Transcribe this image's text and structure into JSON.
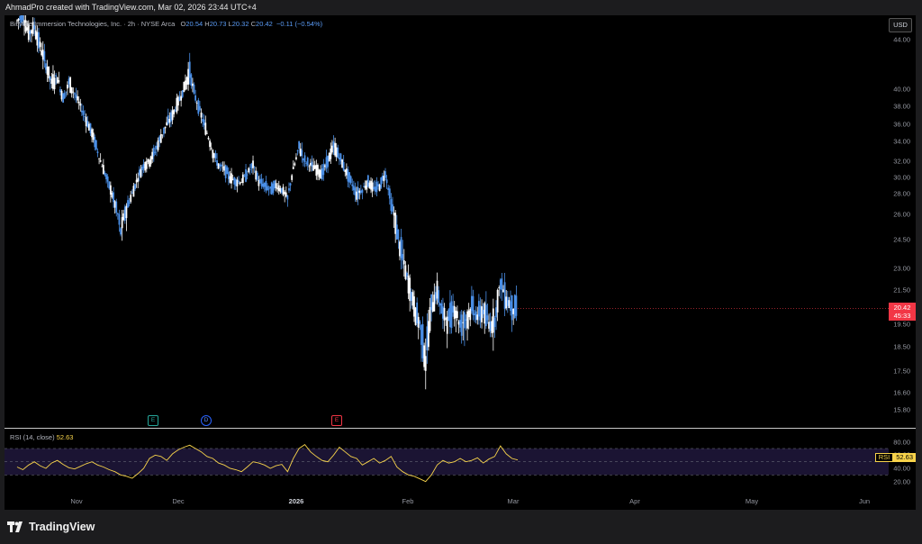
{
  "header": {
    "caption": "AhmadPro created with TradingView.com, Mar 02, 2026 23:44 UTC+4"
  },
  "symbol": {
    "title": "BitMine Immersion Technologies, Inc. · 2h · NYSE Arca",
    "o_label": "O",
    "o_value": "20.54",
    "h_label": "H",
    "h_value": "20.73",
    "l_label": "L",
    "l_value": "20.32",
    "c_label": "C",
    "c_value": "20.42",
    "change": "−0.11 (−0.54%)"
  },
  "currency_button": "USD",
  "price_axis": [
    "44.00",
    "40.00",
    "38.00",
    "36.00",
    "34.00",
    "32.00",
    "30.00",
    "28.00",
    "26.00",
    "24.50",
    "23.00",
    "21.50",
    "19.50",
    "18.50",
    "17.50",
    "16.60",
    "15.80"
  ],
  "last_price": {
    "price": "20.42",
    "countdown": "45:33"
  },
  "rsi": {
    "label": "RSI (14, close)",
    "value": "52.63",
    "tag_label": "RSI",
    "axis": [
      "80.00",
      "60.00",
      "40.00",
      "20.00"
    ]
  },
  "time_axis": [
    {
      "label": "Nov",
      "bold": false
    },
    {
      "label": "Dec",
      "bold": false
    },
    {
      "label": "2026",
      "bold": true
    },
    {
      "label": "Feb",
      "bold": false
    },
    {
      "label": "Mar",
      "bold": false
    },
    {
      "label": "Apr",
      "bold": false
    },
    {
      "label": "May",
      "bold": false
    },
    {
      "label": "Jun",
      "bold": false
    }
  ],
  "events": [
    {
      "type": "earnings",
      "glyph": "E"
    },
    {
      "type": "dividend",
      "glyph": "D"
    },
    {
      "type": "earnings-red",
      "glyph": "E"
    }
  ],
  "footer": {
    "brand": "TradingView"
  },
  "colors": {
    "candle_up": "#ffffff",
    "candle_down": "#4a8fe7",
    "rsi_line": "#f7d34a",
    "last_price": "#f23645",
    "background": "#000000"
  },
  "chart_data": {
    "type": "candlestick",
    "title": "BitMine Immersion Technologies, Inc. · 2h · NYSE Arca",
    "xlabel": "",
    "ylabel": "",
    "ylim": [
      15.8,
      46
    ],
    "x_ticks": [
      "Nov",
      "Dec",
      "2026",
      "Feb",
      "Mar",
      "Apr",
      "May",
      "Jun"
    ],
    "y_ticks": [
      44.0,
      40.0,
      38.0,
      36.0,
      34.0,
      32.0,
      30.0,
      28.0,
      26.0,
      24.5,
      23.0,
      21.5,
      19.5,
      18.5,
      17.5,
      16.6,
      15.8
    ],
    "close_path": [
      45.5,
      46,
      44.5,
      45,
      43.5,
      42,
      40.5,
      41,
      39,
      40.5,
      39.5,
      38,
      36.5,
      35,
      33,
      31,
      29,
      27,
      25,
      26.5,
      28,
      30,
      31.5,
      32,
      33,
      34.5,
      36,
      37,
      38.5,
      40,
      41.5,
      39,
      37,
      35,
      33,
      31.5,
      31,
      30,
      29.5,
      29.5,
      30.5,
      31.5,
      29.5,
      29,
      28.5,
      29,
      28.5,
      27.5,
      31,
      33.5,
      32,
      31.5,
      31,
      30.5,
      32,
      33.5,
      32.5,
      31,
      29.5,
      28,
      28.5,
      29.5,
      28.5,
      29,
      30.5,
      27,
      25,
      23.5,
      22,
      20.5,
      19.5,
      18,
      20.5,
      21.5,
      20,
      19.8,
      20.5,
      19.5,
      19.8,
      20.5,
      20,
      20.3,
      19.5,
      19.8,
      22,
      21,
      20.5,
      20.42
    ],
    "last": 20.42,
    "rsi_ylim": [
      10,
      85
    ],
    "rsi_levels": [
      70,
      50,
      30
    ],
    "rsi_values": [
      42,
      38,
      45,
      50,
      44,
      40,
      48,
      52,
      46,
      41,
      39,
      43,
      47,
      50,
      45,
      42,
      38,
      35,
      30,
      28,
      25,
      32,
      40,
      55,
      60,
      58,
      52,
      62,
      68,
      72,
      75,
      70,
      65,
      58,
      55,
      48,
      45,
      40,
      38,
      35,
      42,
      50,
      48,
      45,
      40,
      44,
      46,
      35,
      55,
      70,
      76,
      65,
      58,
      52,
      50,
      60,
      72,
      65,
      58,
      55,
      45,
      50,
      55,
      48,
      52,
      58,
      42,
      35,
      30,
      28,
      24,
      20,
      30,
      45,
      52,
      48,
      50,
      55,
      50,
      52,
      56,
      48,
      54,
      58,
      74,
      62,
      55,
      52.63
    ]
  }
}
